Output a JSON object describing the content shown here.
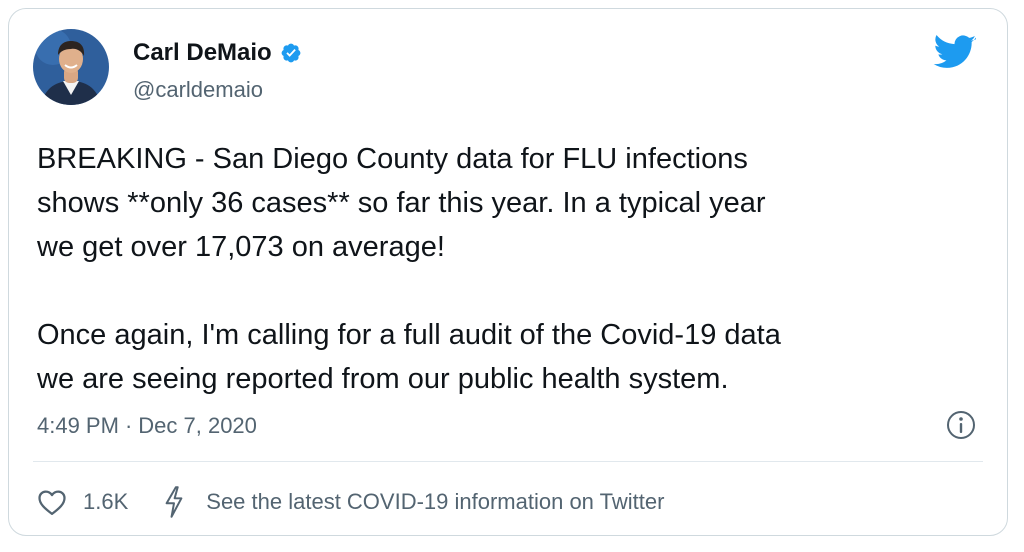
{
  "author": {
    "name": "Carl DeMaio",
    "handle": "@carldemaio",
    "verified": true,
    "avatar_icon": "avatar-portrait"
  },
  "tweet": {
    "text": "BREAKING - San Diego County data for FLU infections\nshows **only 36 cases** so far this year.   In a typical year\nwe get over 17,073 on average!\n\nOnce again, I'm calling for a full audit of the Covid-19 data\nwe are seeing reported from our public health system.",
    "time": "4:49 PM",
    "separator": "·",
    "date": "Dec 7, 2020"
  },
  "actions": {
    "like_count": "1.6K",
    "covid_info": "See the latest COVID-19 information on Twitter"
  },
  "icons": {
    "brand": "twitter-bird-icon",
    "verified": "verified-badge-icon",
    "info": "info-icon",
    "like": "heart-icon",
    "covid": "lightning-icon"
  },
  "colors": {
    "brand": "#1d9bf0",
    "text": "#0f1419",
    "secondary": "#536471",
    "border": "#cfd9de"
  }
}
